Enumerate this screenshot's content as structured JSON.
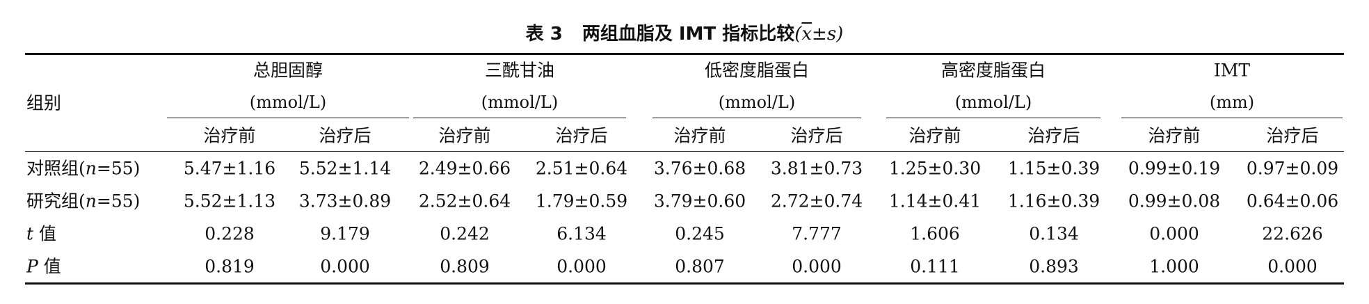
{
  "title": {
    "label": "表 3",
    "text": "两组血脂及 IMT 指标比较",
    "stat_open": "(",
    "stat_mean": "x",
    "stat_rest": "±s",
    "stat_close": ")"
  },
  "row_header": "组别",
  "groups": [
    {
      "name": "总胆固醇",
      "unit": "(mmol/L)"
    },
    {
      "name": "三酰甘油",
      "unit": "(mmol/L)"
    },
    {
      "name": "低密度脂蛋白",
      "unit": "(mmol/L)"
    },
    {
      "name": "高密度脂蛋白",
      "unit": "(mmol/L)"
    },
    {
      "name": "IMT",
      "unit": "(mm)"
    }
  ],
  "subheaders": [
    "治疗前",
    "治疗后"
  ],
  "rows": [
    {
      "label_pre": "对照组(",
      "label_var": "n",
      "label_post": "=55)",
      "values": [
        "5.47±1.16",
        "5.52±1.14",
        "2.49±0.66",
        "2.51±0.64",
        "3.76±0.68",
        "3.81±0.73",
        "1.25±0.30",
        "1.15±0.39",
        "0.99±0.19",
        "0.97±0.09"
      ]
    },
    {
      "label_pre": "研究组(",
      "label_var": "n",
      "label_post": "=55)",
      "values": [
        "5.52±1.13",
        "3.73±0.89",
        "2.52±0.64",
        "1.79±0.59",
        "3.79±0.60",
        "2.72±0.74",
        "1.14±0.41",
        "1.16±0.39",
        "0.99±0.08",
        "0.64±0.06"
      ]
    },
    {
      "label_pre": "",
      "label_var": "t",
      "label_post": " 值",
      "values": [
        "0.228",
        "9.179",
        "0.242",
        "6.134",
        "0.245",
        "7.777",
        "1.606",
        "0.134",
        "0.000",
        "22.626"
      ]
    },
    {
      "label_pre": "",
      "label_var": "P",
      "label_post": " 值",
      "values": [
        "0.819",
        "0.000",
        "0.809",
        "0.000",
        "0.807",
        "0.000",
        "0.111",
        "0.893",
        "1.000",
        "0.000"
      ]
    }
  ]
}
